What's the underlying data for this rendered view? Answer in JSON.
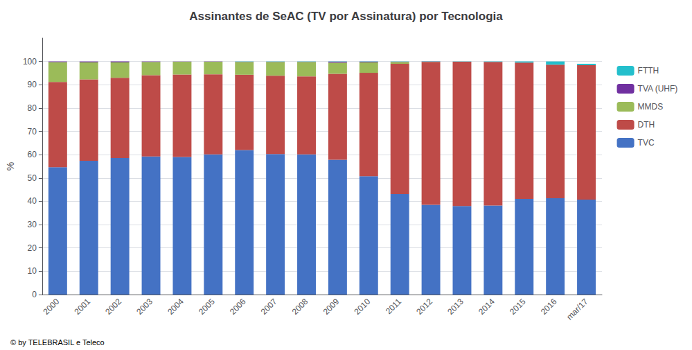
{
  "chart_data": {
    "type": "bar",
    "title": "Assinantes de SeAC (TV por Assinatura) por Tecnologia",
    "ylabel": "%",
    "categories": [
      "2000",
      "2001",
      "2002",
      "2003",
      "2004",
      "2005",
      "2006",
      "2007",
      "2008",
      "2009",
      "2010",
      "2011",
      "2012",
      "2013",
      "2014",
      "2015",
      "2016",
      "mar/17"
    ],
    "series": [
      {
        "name": "TVC",
        "color": "#4472C4",
        "values": [
          54.6,
          57.4,
          58.6,
          59.2,
          59.0,
          60.1,
          62.0,
          60.3,
          60.1,
          57.8,
          50.8,
          43.1,
          38.5,
          38.0,
          38.2,
          41.0,
          41.3,
          40.7
        ]
      },
      {
        "name": "DTH",
        "color": "#BE4B48",
        "values": [
          36.6,
          34.9,
          34.4,
          34.9,
          35.4,
          34.4,
          32.3,
          33.6,
          33.5,
          36.9,
          44.3,
          55.9,
          61.3,
          61.9,
          61.6,
          58.5,
          57.3,
          57.7
        ]
      },
      {
        "name": "MMDS",
        "color": "#9BBB59",
        "values": [
          8.5,
          7.3,
          6.6,
          5.7,
          5.5,
          5.4,
          5.5,
          5.9,
          6.2,
          4.8,
          4.5,
          0.8,
          0.1,
          0.0,
          0.0,
          0.0,
          0.0,
          0.0
        ]
      },
      {
        "name": "TVA (UHF)",
        "color": "#7030A0",
        "values": [
          0.3,
          0.4,
          0.4,
          0.2,
          0.1,
          0.1,
          0.1,
          0.1,
          0.1,
          0.4,
          0.3,
          0.1,
          0.1,
          0.0,
          0.0,
          0.0,
          0.0,
          0.0
        ]
      },
      {
        "name": "FTTH",
        "color": "#23BFCC",
        "values": [
          0.0,
          0.0,
          0.0,
          0.0,
          0.0,
          0.0,
          0.1,
          0.1,
          0.1,
          0.1,
          0.1,
          0.1,
          0.1,
          0.1,
          0.2,
          0.5,
          1.4,
          0.6
        ]
      }
    ],
    "stacked": true,
    "ylim": [
      0,
      110
    ],
    "yticks": [
      0,
      10,
      20,
      30,
      40,
      50,
      60,
      70,
      80,
      90,
      100
    ],
    "grid": true,
    "legend": "right",
    "annotations": [
      "© by TELEBRASIL e Teleco"
    ]
  }
}
